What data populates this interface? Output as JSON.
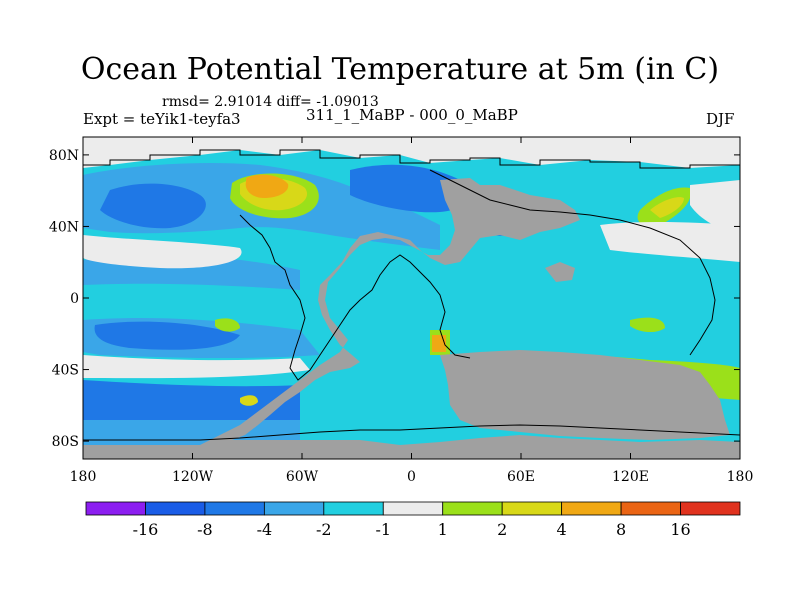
{
  "title": "Ocean Potential Temperature at 5m (in C)",
  "stats": "rmsd= 2.91014 diff= -1.09013",
  "expt": "Expt = teYik1-teyfa3",
  "period": "311_1_MaBP - 000_0_MaBP",
  "season": "DJF",
  "axes": {
    "y_ticks": [
      {
        "label": "80N",
        "lat": 80
      },
      {
        "label": "40N",
        "lat": 40
      },
      {
        "label": "0",
        "lat": 0
      },
      {
        "label": "40S",
        "lat": -40
      },
      {
        "label": "80S",
        "lat": -80
      }
    ],
    "x_ticks": [
      {
        "label": "180",
        "lon": -180
      },
      {
        "label": "120W",
        "lon": -120
      },
      {
        "label": "60W",
        "lon": -60
      },
      {
        "label": "0",
        "lon": 0
      },
      {
        "label": "60E",
        "lon": 60
      },
      {
        "label": "120E",
        "lon": 120
      },
      {
        "label": "180",
        "lon": 180
      }
    ],
    "lat_range": [
      -90,
      90
    ],
    "lon_range": [
      -180,
      180
    ]
  },
  "colorbar": {
    "labels": [
      "-16",
      "-8",
      "-4",
      "-2",
      "-1",
      "1",
      "2",
      "4",
      "8",
      "16"
    ],
    "colors": [
      "#8c1ef0",
      "#1a5ce6",
      "#1f78e6",
      "#3aa6e8",
      "#22cfe0",
      "#ececec",
      "#9be01a",
      "#d8d818",
      "#f0a814",
      "#ea6414",
      "#e0321e"
    ]
  },
  "colors": {
    "land": "#a0a0a0",
    "no_change": "#ececec",
    "cool_1": "#22cfe0",
    "cool_2": "#3aa6e8",
    "cool_4": "#1f78e6",
    "warm_1": "#9be01a",
    "warm_2": "#d8d818",
    "warm_4": "#f0a814",
    "warm_8": "#ea6414"
  }
}
